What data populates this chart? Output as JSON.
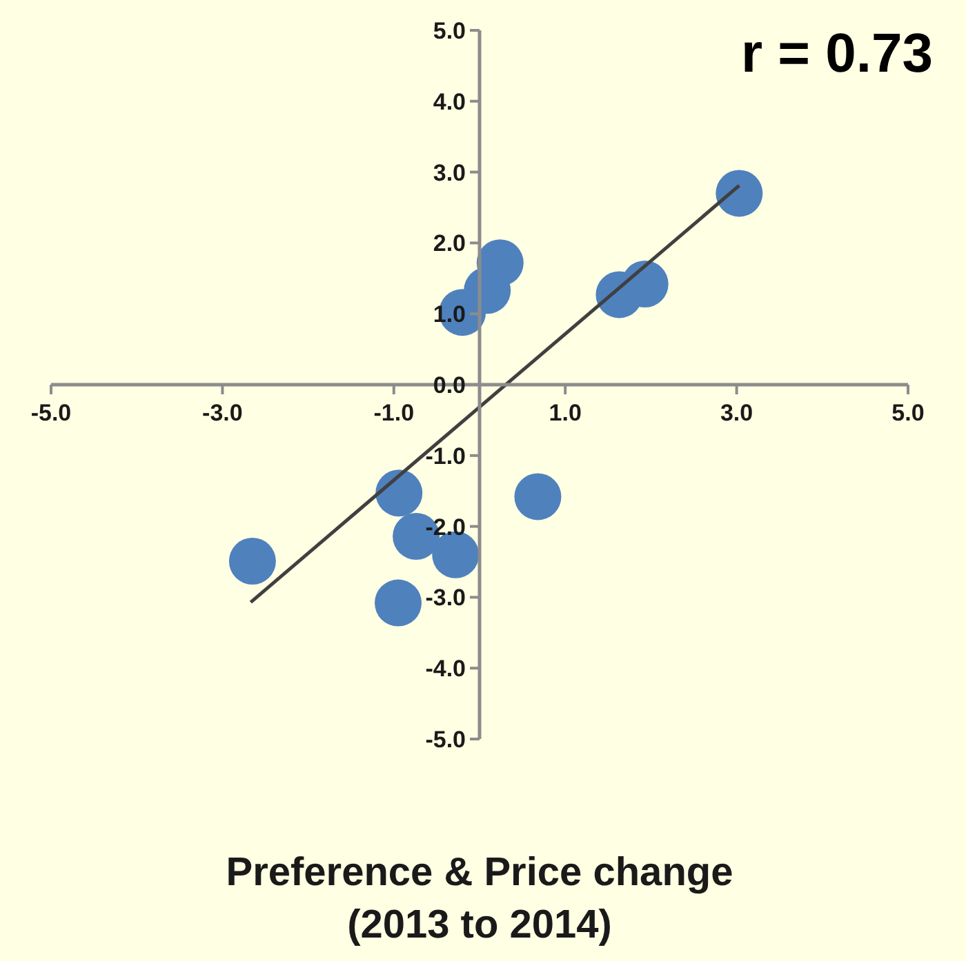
{
  "chart_data": {
    "type": "scatter",
    "xlabel": "Preference & Price change\n(2013 to 2014)",
    "annotations": [
      "r = 0.73"
    ],
    "xlim": [
      -5,
      5
    ],
    "ylim": [
      -5,
      5
    ],
    "xticks": [
      {
        "value": -5,
        "label": "-5.0"
      },
      {
        "value": -3,
        "label": "-3.0"
      },
      {
        "value": -1,
        "label": "-1.0"
      },
      {
        "value": 1,
        "label": "1.0"
      },
      {
        "value": 3,
        "label": "3.0"
      },
      {
        "value": 5,
        "label": "5.0"
      }
    ],
    "yticks": [
      {
        "value": -5,
        "label": "-5.0"
      },
      {
        "value": -4,
        "label": "-4.0"
      },
      {
        "value": -3,
        "label": "-3.0"
      },
      {
        "value": -2,
        "label": "-2.0"
      },
      {
        "value": -1,
        "label": "-1.0"
      },
      {
        "value": 0,
        "label": "0.0"
      },
      {
        "value": 1,
        "label": "1.0"
      },
      {
        "value": 2,
        "label": "2.0"
      },
      {
        "value": 3,
        "label": "3.0"
      },
      {
        "value": 4,
        "label": "4.0"
      },
      {
        "value": 5,
        "label": "5.0"
      }
    ],
    "grid": false,
    "series": [
      {
        "marker": "circle",
        "color": "#4f81bd",
        "x": [
          3.03,
          1.93,
          1.63,
          0.24,
          0.09,
          -0.2,
          -0.94,
          0.68,
          -0.74,
          -0.28,
          -0.95,
          -2.65
        ],
        "values": [
          2.7,
          1.42,
          1.27,
          1.72,
          1.33,
          1.02,
          -1.53,
          -1.58,
          -2.14,
          -2.4,
          -3.08,
          -2.49
        ]
      },
      {
        "type": "line",
        "color": "#404040",
        "x": [
          -2.67,
          3.03
        ],
        "values": [
          -3.07,
          2.81
        ]
      }
    ]
  }
}
